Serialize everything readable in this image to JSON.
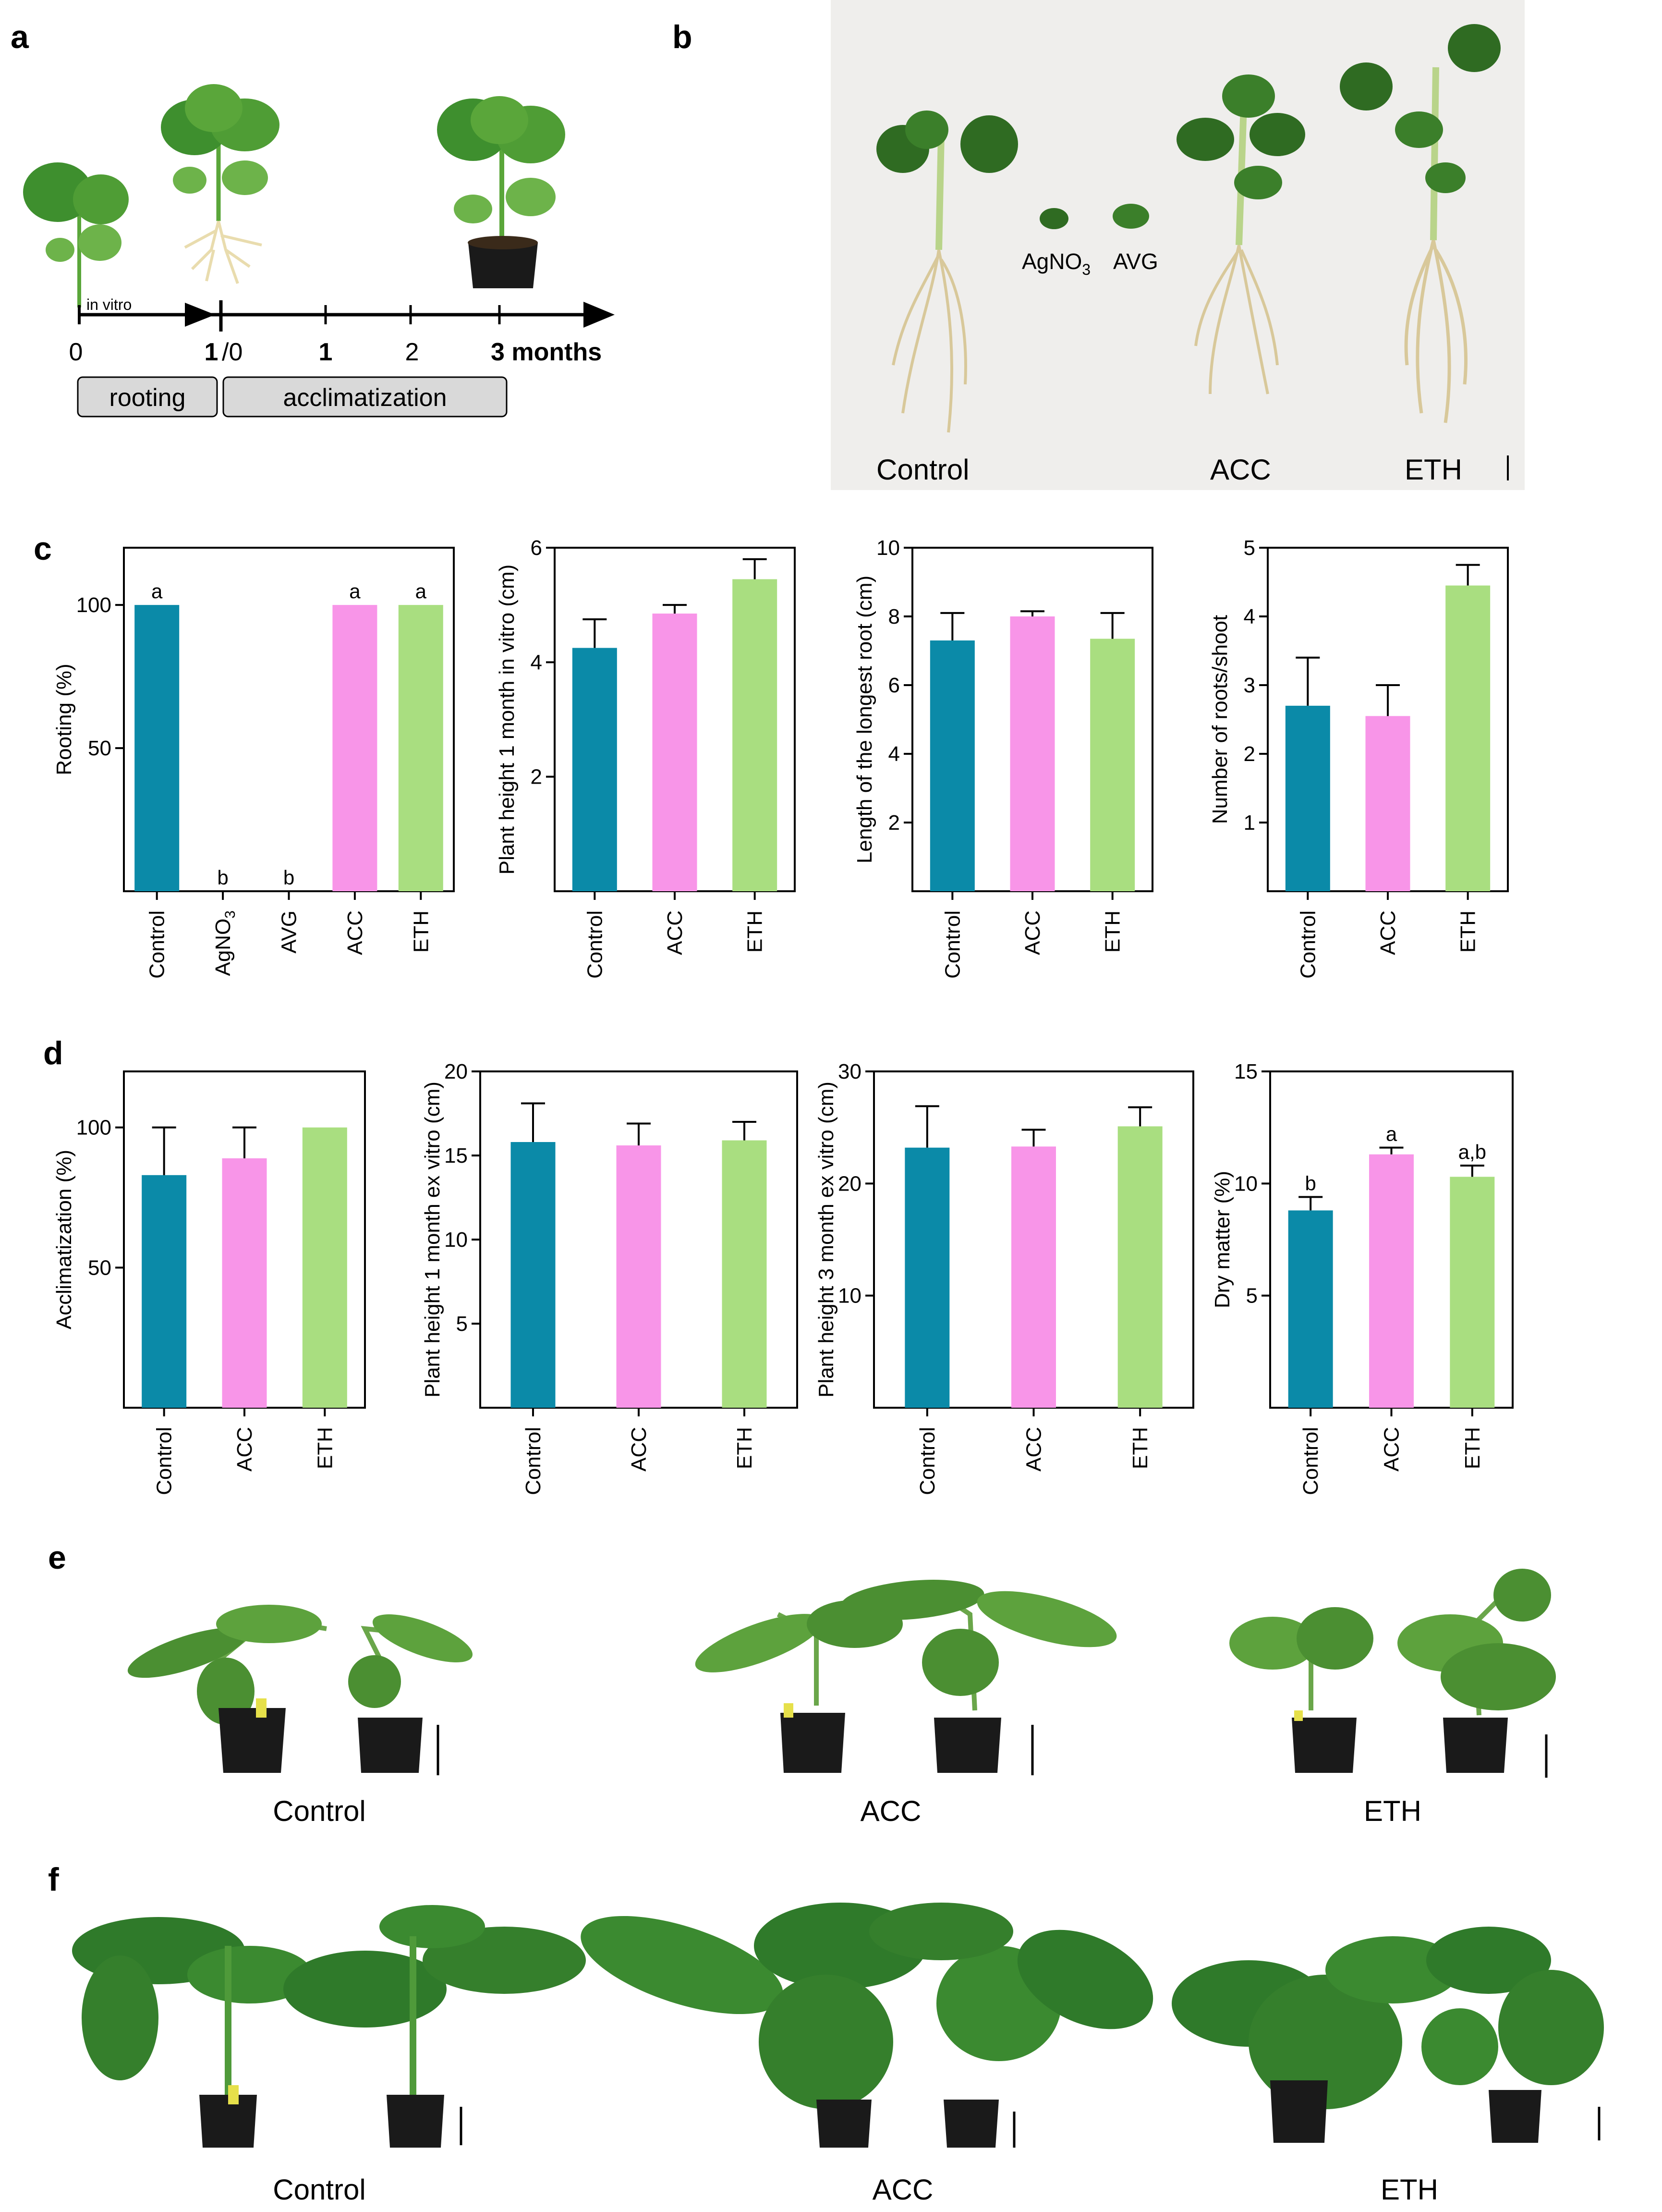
{
  "panels": {
    "a": "a",
    "b": "b",
    "c": "c",
    "d": "d",
    "e": "e",
    "f": "f"
  },
  "timeline": {
    "in_vitro": "in vitro",
    "tick0": "0",
    "tick1_bold": "1",
    "tick1_rest": "/0",
    "tick_one": "1",
    "tick_two": "2",
    "tick_three_bold": "3 months",
    "box_rooting": "rooting",
    "box_acclim": "acclimatization"
  },
  "photo_b": {
    "labels": [
      "Control",
      "ACC",
      "ETH"
    ],
    "agno3": "AgNO",
    "agno3_sub": "3",
    "avg": "AVG"
  },
  "photo_e": {
    "labels": [
      "Control",
      "ACC",
      "ETH"
    ]
  },
  "photo_f": {
    "labels": [
      "Control",
      "ACC",
      "ETH"
    ]
  },
  "colors": {
    "control": "#0b8aa8",
    "acc": "#f895e8",
    "eth": "#a9de80",
    "leaf": "#3e8f2e",
    "leaf_light": "#6db34a",
    "pot": "#1a1a1a",
    "root": "#e9dcae"
  },
  "chart_data": [
    {
      "id": "c1",
      "type": "bar",
      "ylabel": "Rooting  (%)",
      "categories": [
        "Control",
        "AgNO3",
        "AVG",
        "ACC",
        "ETH"
      ],
      "values": [
        100,
        0,
        0,
        100,
        100
      ],
      "errors": [
        0,
        0,
        0,
        0,
        0
      ],
      "letters": [
        "a",
        "b",
        "b",
        "a",
        "a"
      ],
      "ylim": [
        0,
        120
      ],
      "ticks": [
        50,
        100
      ],
      "tick_labels": [
        "50",
        "100"
      ]
    },
    {
      "id": "c2",
      "type": "bar",
      "ylabel": "Plant height 1 month in vitro (cm)",
      "categories": [
        "Control",
        "ACC",
        "ETH"
      ],
      "values": [
        4.25,
        4.85,
        5.45
      ],
      "errors": [
        0.5,
        0.15,
        0.35
      ],
      "letters": [],
      "ylim": [
        0,
        6
      ],
      "ticks": [
        2,
        4,
        6
      ],
      "tick_labels": [
        "2",
        "4",
        "6"
      ]
    },
    {
      "id": "c3",
      "type": "bar",
      "ylabel": "Length of the longest root (cm)",
      "categories": [
        "Control",
        "ACC",
        "ETH"
      ],
      "values": [
        7.3,
        8.0,
        7.35
      ],
      "errors": [
        0.8,
        0.15,
        0.75
      ],
      "letters": [],
      "ylim": [
        0,
        10
      ],
      "ticks": [
        2,
        4,
        6,
        8,
        10
      ],
      "tick_labels": [
        "2",
        "4",
        "6",
        "8",
        "10"
      ]
    },
    {
      "id": "c4",
      "type": "bar",
      "ylabel": "Number of roots/shoot",
      "categories": [
        "Control",
        "ACC",
        "ETH"
      ],
      "values": [
        2.7,
        2.55,
        4.45
      ],
      "errors": [
        0.7,
        0.45,
        0.3
      ],
      "letters": [],
      "ylim": [
        0,
        5
      ],
      "ticks": [
        1,
        2,
        3,
        4,
        5
      ],
      "tick_labels": [
        "1",
        "2",
        "3",
        "4",
        "5"
      ]
    },
    {
      "id": "d1",
      "type": "bar",
      "ylabel": "Acclimatization  (%)",
      "categories": [
        "Control",
        "ACC",
        "ETH"
      ],
      "values": [
        83,
        89,
        100
      ],
      "errors": [
        17,
        11,
        0
      ],
      "letters": [],
      "ylim": [
        0,
        120
      ],
      "ticks": [
        50,
        100
      ],
      "tick_labels": [
        "50",
        "100"
      ]
    },
    {
      "id": "d2",
      "type": "bar",
      "ylabel": "Plant height 1 month ex vitro (cm)",
      "categories": [
        "Control",
        "ACC",
        "ETH"
      ],
      "values": [
        15.8,
        15.6,
        15.9
      ],
      "errors": [
        2.3,
        1.3,
        1.1
      ],
      "letters": [],
      "ylim": [
        0,
        20
      ],
      "ticks": [
        5,
        10,
        15,
        20
      ],
      "tick_labels": [
        "5",
        "10",
        "15",
        "20"
      ]
    },
    {
      "id": "d3",
      "type": "bar",
      "ylabel": "Plant height 3 month ex vitro (cm)",
      "categories": [
        "Control",
        "ACC",
        "ETH"
      ],
      "values": [
        23.2,
        23.3,
        25.1
      ],
      "errors": [
        3.7,
        1.5,
        1.7
      ],
      "letters": [],
      "ylim": [
        0,
        30
      ],
      "ticks": [
        10,
        20,
        30
      ],
      "tick_labels": [
        "10",
        "20",
        "30"
      ]
    },
    {
      "id": "d4",
      "type": "bar",
      "ylabel": "Dry matter  (%)",
      "categories": [
        "Control",
        "ACC",
        "ETH"
      ],
      "values": [
        8.8,
        11.3,
        10.3
      ],
      "errors": [
        0.6,
        0.3,
        0.5
      ],
      "letters": [
        "b",
        "a",
        "a,b"
      ],
      "ylim": [
        0,
        15
      ],
      "ticks": [
        5,
        10,
        15
      ],
      "tick_labels": [
        "5",
        "10",
        "15"
      ]
    }
  ]
}
